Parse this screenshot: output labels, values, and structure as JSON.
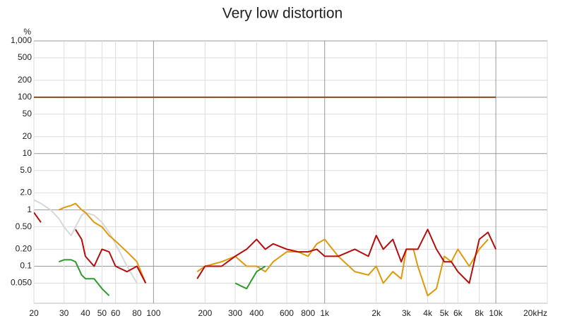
{
  "chart_data": {
    "type": "line",
    "title": "Very low distortion",
    "y_label": "%",
    "log_x": true,
    "log_y": true,
    "grid": true,
    "xlim": [
      20,
      20000
    ],
    "ylim": [
      0.022,
      1000
    ],
    "xticks": [
      20,
      30,
      40,
      50,
      60,
      80,
      100,
      200,
      300,
      400,
      600,
      800,
      {
        "value": 1000,
        "label": "1k"
      },
      {
        "value": 2000,
        "label": "2k"
      },
      {
        "value": 3000,
        "label": "3k"
      },
      {
        "value": 4000,
        "label": "4k"
      },
      {
        "value": 5000,
        "label": "5k"
      },
      {
        "value": 6000,
        "label": "6k"
      },
      {
        "value": 8000,
        "label": "8k"
      },
      {
        "value": 10000,
        "label": "10k"
      },
      {
        "value": 20000,
        "label": "20kHz"
      }
    ],
    "yticks": [
      {
        "value": 1000,
        "label": "1,000"
      },
      500,
      200,
      100,
      50,
      20,
      10,
      {
        "value": 5,
        "label": "5.0"
      },
      {
        "value": 2,
        "label": "2.0"
      },
      1,
      {
        "value": 0.5,
        "label": "0.50"
      },
      {
        "value": 0.2,
        "label": "0.20"
      },
      0.1,
      {
        "value": 0.05,
        "label": "0.050"
      }
    ],
    "x": [
      20,
      22,
      25,
      28,
      30,
      33,
      35,
      38,
      40,
      45,
      50,
      55,
      60,
      70,
      80,
      90,
      100,
      120,
      150,
      180,
      200,
      250,
      300,
      350,
      400,
      450,
      500,
      600,
      700,
      800,
      900,
      1000,
      1200,
      1500,
      1800,
      2000,
      2200,
      2500,
      2800,
      3000,
      3300,
      3500,
      4000,
      4500,
      5000,
      5500,
      6000,
      7000,
      8000,
      9000,
      10000
    ],
    "series": [
      {
        "color": "#8b4a12",
        "values": [
          100,
          100,
          100,
          100,
          100,
          100,
          100,
          100,
          100,
          100,
          100,
          100,
          100,
          100,
          100,
          100,
          100,
          100,
          100,
          100,
          100,
          100,
          100,
          100,
          100,
          100,
          100,
          100,
          100,
          100,
          100,
          100,
          100,
          100,
          100,
          100,
          100,
          100,
          100,
          100,
          100,
          100,
          100,
          100,
          100,
          100,
          100,
          100,
          100,
          100,
          100
        ]
      },
      {
        "color": "#d8d8d8",
        "values": [
          1.5,
          1.3,
          1.0,
          0.7,
          0.5,
          0.35,
          0.5,
          0.8,
          0.9,
          0.8,
          0.6,
          0.4,
          0.25,
          0.1,
          0.05,
          null,
          null,
          null,
          null,
          null,
          null,
          null,
          null,
          null,
          null,
          null,
          null,
          null,
          null,
          null,
          null,
          null,
          null,
          null,
          null,
          null,
          null,
          null,
          null,
          null,
          null,
          null,
          null,
          null,
          null,
          null,
          null,
          null,
          null,
          null,
          null
        ]
      },
      {
        "color": "#e0980c",
        "values": [
          null,
          null,
          null,
          1.0,
          1.1,
          1.2,
          1.3,
          1.0,
          0.9,
          0.6,
          0.5,
          0.35,
          0.28,
          0.18,
          0.12,
          0.05,
          null,
          null,
          null,
          0.08,
          0.1,
          0.12,
          0.15,
          0.1,
          0.1,
          0.08,
          0.12,
          0.18,
          0.18,
          0.15,
          0.25,
          0.3,
          0.15,
          0.08,
          0.07,
          0.1,
          0.05,
          0.08,
          0.06,
          0.2,
          0.2,
          0.1,
          0.03,
          0.04,
          0.15,
          0.12,
          0.2,
          0.1,
          0.2,
          0.3,
          null
        ]
      },
      {
        "color": "#2e9a2e",
        "values": [
          null,
          null,
          null,
          0.12,
          0.13,
          0.13,
          0.12,
          0.07,
          0.06,
          0.06,
          0.04,
          0.03,
          null,
          null,
          null,
          null,
          null,
          null,
          null,
          null,
          null,
          null,
          0.05,
          0.04,
          0.08,
          0.1,
          null,
          null,
          null,
          null,
          null,
          null,
          null,
          null,
          null,
          null,
          null,
          null,
          null,
          null,
          null,
          null,
          null,
          null,
          null,
          null,
          null,
          null,
          null,
          null,
          null
        ]
      },
      {
        "color": "#b50d0d",
        "values": [
          0.9,
          0.6,
          null,
          null,
          null,
          null,
          0.45,
          0.3,
          0.15,
          0.1,
          0.2,
          0.18,
          0.1,
          0.08,
          0.1,
          0.05,
          null,
          null,
          null,
          0.06,
          0.1,
          0.1,
          0.15,
          0.2,
          0.3,
          0.2,
          0.25,
          0.2,
          0.18,
          0.18,
          0.2,
          0.15,
          0.15,
          0.2,
          0.15,
          0.35,
          0.2,
          0.3,
          0.12,
          0.2,
          0.2,
          0.2,
          0.45,
          0.2,
          0.12,
          0.12,
          0.08,
          0.05,
          0.3,
          0.4,
          0.2
        ]
      }
    ]
  }
}
